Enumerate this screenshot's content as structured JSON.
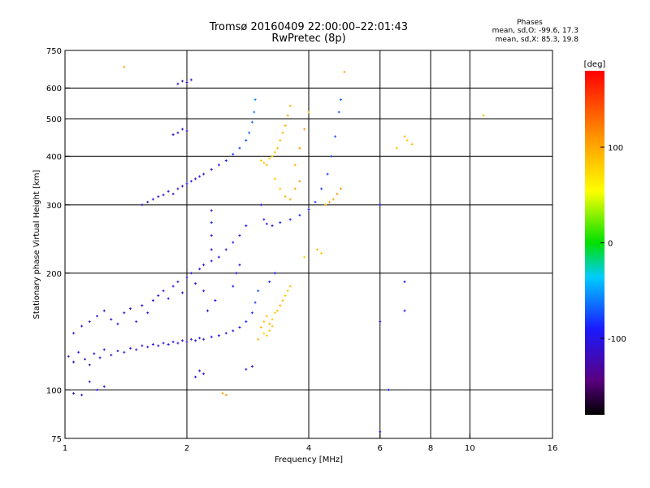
{
  "header": {
    "title_line1": "Tromsø 20160409 22:00:00–22:01:43",
    "title_line2": "RwPretec (8p)"
  },
  "stats": {
    "heading": "Phases",
    "o_line": "mean, sd,O: -99.6, 17.3",
    "x_line": "mean, sd,X:  85.3, 19.8"
  },
  "chart_data": {
    "type": "scatter",
    "xlabel": "Frequency [MHz]",
    "ylabel": "Stationary phase Virtual Height [km]",
    "x_scale": "log",
    "y_scale": "log",
    "xlim": [
      1,
      16
    ],
    "ylim": [
      75,
      750
    ],
    "x_ticks": [
      1,
      2,
      4,
      6,
      8,
      10,
      16
    ],
    "y_ticks": [
      75,
      100,
      200,
      300,
      400,
      500,
      600,
      750
    ],
    "x_grid": [
      2,
      4,
      6,
      8,
      10
    ],
    "y_grid": [
      100,
      200,
      300,
      400,
      500,
      600
    ],
    "colorbar": {
      "label": "[deg]",
      "range": [
        -180,
        180
      ],
      "ticks": [
        -100,
        0,
        100
      ],
      "colormap": "rainbow (black → purple → blue → cyan → green → yellow → orange → red)"
    },
    "series": [
      {
        "points": [
          [
            1.02,
            122,
            -110
          ],
          [
            1.05,
            118,
            -115
          ],
          [
            1.08,
            125,
            -105
          ],
          [
            1.12,
            120,
            -112
          ],
          [
            1.15,
            116,
            -120
          ],
          [
            1.18,
            124,
            -108
          ],
          [
            1.22,
            121,
            -100
          ],
          [
            1.25,
            127,
            -110
          ],
          [
            1.3,
            123,
            -115
          ],
          [
            1.35,
            126,
            -95
          ],
          [
            1.4,
            125,
            -105
          ],
          [
            1.45,
            128,
            -110
          ],
          [
            1.5,
            127,
            -100
          ],
          [
            1.55,
            130,
            -108
          ],
          [
            1.6,
            129,
            -112
          ],
          [
            1.65,
            131,
            -98
          ],
          [
            1.7,
            130,
            -105
          ],
          [
            1.75,
            132,
            -110
          ],
          [
            1.8,
            131,
            -95
          ],
          [
            1.85,
            133,
            -102
          ],
          [
            1.9,
            132,
            -108
          ],
          [
            1.95,
            134,
            -100
          ],
          [
            2.0,
            133,
            -105
          ],
          [
            2.05,
            135,
            -110
          ],
          [
            2.1,
            134,
            -95
          ],
          [
            2.15,
            136,
            -100
          ],
          [
            2.2,
            135,
            -108
          ],
          [
            2.3,
            137,
            -102
          ],
          [
            2.4,
            138,
            -98
          ],
          [
            2.5,
            140,
            -105
          ],
          [
            2.6,
            142,
            -100
          ],
          [
            2.7,
            145,
            -95
          ],
          [
            2.8,
            150,
            -90
          ],
          [
            2.9,
            158,
            -85
          ],
          [
            2.95,
            168,
            -80
          ],
          [
            3.0,
            180,
            -75
          ],
          [
            1.05,
            140,
            -110
          ],
          [
            1.1,
            146,
            -105
          ],
          [
            1.15,
            150,
            -115
          ],
          [
            1.2,
            155,
            -100
          ],
          [
            1.25,
            160,
            -108
          ],
          [
            1.3,
            152,
            -112
          ],
          [
            1.35,
            148,
            -95
          ],
          [
            1.4,
            158,
            -105
          ],
          [
            1.45,
            162,
            -110
          ],
          [
            1.5,
            150,
            -100
          ],
          [
            1.55,
            165,
            -108
          ],
          [
            1.6,
            158,
            -112
          ],
          [
            1.65,
            170,
            -98
          ],
          [
            1.7,
            175,
            -105
          ],
          [
            1.75,
            180,
            -110
          ],
          [
            1.8,
            172,
            -95
          ],
          [
            1.85,
            185,
            -102
          ],
          [
            1.9,
            190,
            -108
          ],
          [
            1.95,
            178,
            -100
          ],
          [
            2.0,
            195,
            -105
          ],
          [
            2.05,
            200,
            -110
          ],
          [
            2.1,
            188,
            -95
          ],
          [
            2.15,
            205,
            -100
          ],
          [
            2.2,
            210,
            -108
          ],
          [
            2.3,
            215,
            -102
          ],
          [
            2.4,
            220,
            -98
          ],
          [
            2.5,
            230,
            -105
          ],
          [
            2.6,
            240,
            -100
          ],
          [
            2.7,
            250,
            -95
          ],
          [
            2.8,
            265,
            -90
          ],
          [
            1.85,
            320,
            -115
          ],
          [
            1.9,
            330,
            -110
          ],
          [
            1.95,
            335,
            -105
          ],
          [
            2.0,
            340,
            -100
          ],
          [
            2.05,
            345,
            -95
          ],
          [
            2.1,
            350,
            -100
          ],
          [
            2.15,
            355,
            -105
          ],
          [
            2.2,
            360,
            -110
          ],
          [
            2.3,
            370,
            -100
          ],
          [
            2.4,
            380,
            -95
          ],
          [
            2.5,
            390,
            -90
          ],
          [
            2.6,
            405,
            -85
          ],
          [
            2.7,
            420,
            -80
          ],
          [
            2.8,
            440,
            -75
          ],
          [
            2.85,
            460,
            -70
          ],
          [
            2.9,
            490,
            -65
          ],
          [
            2.93,
            520,
            -60
          ],
          [
            2.95,
            560,
            -55
          ],
          [
            1.7,
            315,
            -112
          ],
          [
            1.75,
            318,
            -108
          ],
          [
            1.8,
            325,
            -104
          ],
          [
            1.65,
            310,
            -110
          ],
          [
            1.6,
            305,
            -115
          ],
          [
            1.55,
            300,
            -108
          ],
          [
            1.9,
            460,
            -115
          ],
          [
            1.95,
            470,
            -110
          ],
          [
            2.0,
            465,
            -105
          ],
          [
            1.85,
            455,
            -112
          ],
          [
            1.95,
            625,
            -115
          ],
          [
            2.0,
            620,
            -110
          ],
          [
            2.05,
            630,
            -105
          ],
          [
            1.9,
            615,
            -112
          ],
          [
            3.05,
            300,
            -105
          ],
          [
            3.1,
            275,
            -100
          ],
          [
            3.15,
            268,
            -98
          ],
          [
            3.25,
            265,
            -95
          ],
          [
            3.4,
            270,
            -92
          ],
          [
            3.6,
            275,
            -90
          ],
          [
            3.8,
            282,
            -88
          ],
          [
            4.0,
            292,
            -85
          ],
          [
            4.15,
            305,
            -82
          ],
          [
            4.3,
            330,
            -80
          ],
          [
            4.45,
            360,
            -78
          ],
          [
            4.55,
            400,
            -75
          ],
          [
            4.65,
            450,
            -72
          ],
          [
            4.75,
            520,
            -70
          ],
          [
            4.8,
            560,
            -68
          ],
          [
            2.3,
            250,
            -100
          ],
          [
            2.3,
            230,
            -105
          ],
          [
            2.3,
            270,
            -95
          ],
          [
            2.3,
            290,
            -110
          ],
          [
            2.2,
            180,
            -100
          ],
          [
            2.25,
            160,
            -105
          ],
          [
            2.35,
            170,
            -100
          ],
          [
            2.6,
            185,
            -95
          ],
          [
            2.65,
            200,
            -100
          ],
          [
            2.7,
            210,
            -98
          ],
          [
            3.2,
            190,
            -90
          ],
          [
            3.3,
            200,
            -95
          ],
          [
            1.15,
            105,
            -110
          ],
          [
            1.2,
            100,
            -105
          ],
          [
            1.25,
            102,
            -115
          ],
          [
            1.05,
            98,
            -110
          ],
          [
            1.1,
            97,
            -108
          ],
          [
            2.1,
            108,
            -100
          ],
          [
            2.15,
            112,
            -105
          ],
          [
            2.2,
            110,
            -110
          ],
          [
            2.8,
            113,
            -95
          ],
          [
            2.9,
            115,
            -98
          ],
          [
            6.0,
            78,
            -95
          ],
          [
            6.3,
            100,
            -90
          ],
          [
            6.9,
            190,
            -92
          ],
          [
            6.9,
            160,
            -95
          ],
          [
            6.0,
            150,
            -100
          ],
          [
            6.0,
            300,
            -90
          ]
        ]
      },
      {
        "points": [
          [
            3.05,
            145,
            90
          ],
          [
            3.1,
            150,
            85
          ],
          [
            3.15,
            155,
            88
          ],
          [
            3.2,
            148,
            92
          ],
          [
            3.25,
            152,
            80
          ],
          [
            3.3,
            158,
            85
          ],
          [
            3.35,
            160,
            88
          ],
          [
            3.4,
            165,
            90
          ],
          [
            3.45,
            170,
            85
          ],
          [
            3.5,
            175,
            82
          ],
          [
            3.55,
            180,
            86
          ],
          [
            3.6,
            185,
            90
          ],
          [
            3.1,
            140,
            75
          ],
          [
            3.15,
            138,
            80
          ],
          [
            3.2,
            142,
            85
          ],
          [
            3.25,
            146,
            90
          ],
          [
            3.0,
            135,
            95
          ],
          [
            3.05,
            390,
            80
          ],
          [
            3.1,
            385,
            85
          ],
          [
            3.15,
            380,
            90
          ],
          [
            3.2,
            395,
            78
          ],
          [
            3.25,
            400,
            85
          ],
          [
            3.3,
            410,
            88
          ],
          [
            3.35,
            420,
            90
          ],
          [
            3.4,
            440,
            92
          ],
          [
            3.45,
            460,
            95
          ],
          [
            3.5,
            480,
            98
          ],
          [
            3.55,
            510,
            100
          ],
          [
            3.6,
            540,
            95
          ],
          [
            3.3,
            350,
            85
          ],
          [
            3.4,
            330,
            90
          ],
          [
            3.5,
            315,
            95
          ],
          [
            3.6,
            310,
            100
          ],
          [
            3.7,
            330,
            105
          ],
          [
            3.8,
            345,
            110
          ],
          [
            4.4,
            300,
            95
          ],
          [
            4.5,
            305,
            100
          ],
          [
            4.6,
            310,
            105
          ],
          [
            4.7,
            320,
            110
          ],
          [
            4.8,
            330,
            115
          ],
          [
            3.7,
            380,
            100
          ],
          [
            3.8,
            420,
            110
          ],
          [
            3.9,
            470,
            105
          ],
          [
            4.0,
            520,
            95
          ],
          [
            4.2,
            230,
            90
          ],
          [
            4.3,
            225,
            85
          ],
          [
            3.9,
            220,
            80
          ],
          [
            4.9,
            660,
            100
          ],
          [
            1.4,
            680,
            110
          ],
          [
            10.8,
            510,
            95
          ],
          [
            2.45,
            98,
            105
          ],
          [
            2.5,
            97,
            110
          ],
          [
            6.6,
            420,
            85
          ],
          [
            6.9,
            450,
            90
          ],
          [
            7.0,
            440,
            80
          ],
          [
            7.2,
            430,
            95
          ]
        ]
      }
    ]
  }
}
